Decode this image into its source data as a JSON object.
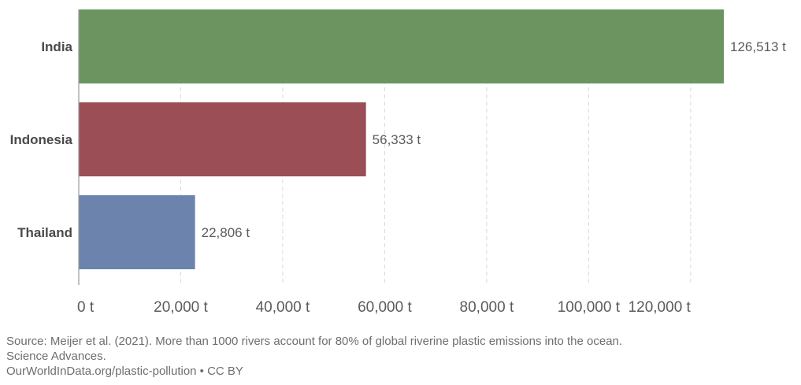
{
  "chart_data": {
    "type": "bar",
    "orientation": "horizontal",
    "categories": [
      "India",
      "Indonesia",
      "Thailand"
    ],
    "values": [
      126513,
      56333,
      22806
    ],
    "value_labels": [
      "126,513 t",
      "56,333 t",
      "22,806 t"
    ],
    "colors": [
      "#6b9461",
      "#9b4e55",
      "#6b83ad"
    ],
    "xlim": [
      0,
      126513
    ],
    "ticks": [
      0,
      20000,
      40000,
      60000,
      80000,
      100000,
      120000
    ],
    "tick_labels": [
      "0 t",
      "20,000 t",
      "40,000 t",
      "60,000 t",
      "80,000 t",
      "100,000 t",
      "120,000 t"
    ],
    "grid": "vertical dashed"
  },
  "source": {
    "line1": "Source: Meijer et al. (2021). More than 1000 rivers account for 80% of global riverine plastic emissions into the ocean.",
    "line2": "Science Advances.",
    "line3": "OurWorldInData.org/plastic-pollution • CC BY"
  }
}
